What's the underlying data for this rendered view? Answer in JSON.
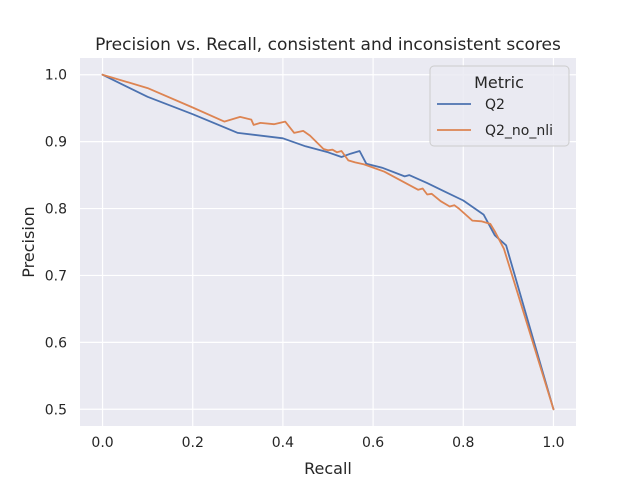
{
  "chart_data": {
    "type": "line",
    "title": "Precision vs. Recall, consistent and inconsistent scores",
    "xlabel": "Recall",
    "ylabel": "Precision",
    "xlim": [
      -0.05,
      1.05
    ],
    "ylim": [
      0.475,
      1.025
    ],
    "xticks": [
      0.0,
      0.2,
      0.4,
      0.6,
      0.8,
      1.0
    ],
    "xtick_labels": [
      "0.0",
      "0.2",
      "0.4",
      "0.6",
      "0.8",
      "1.0"
    ],
    "yticks": [
      0.5,
      0.6,
      0.7,
      0.8,
      0.9,
      1.0
    ],
    "ytick_labels": [
      "0.5",
      "0.6",
      "0.7",
      "0.8",
      "0.9",
      "1.0"
    ],
    "grid": true,
    "legend": {
      "title": "Metric",
      "position": "top-right"
    },
    "series": [
      {
        "name": "Q2",
        "color": "#4c72b0",
        "points": [
          [
            0.0,
            1.0
          ],
          [
            0.1,
            0.967
          ],
          [
            0.2,
            0.941
          ],
          [
            0.3,
            0.913
          ],
          [
            0.4,
            0.905
          ],
          [
            0.45,
            0.893
          ],
          [
            0.5,
            0.884
          ],
          [
            0.53,
            0.877
          ],
          [
            0.55,
            0.882
          ],
          [
            0.57,
            0.886
          ],
          [
            0.585,
            0.867
          ],
          [
            0.62,
            0.861
          ],
          [
            0.67,
            0.848
          ],
          [
            0.68,
            0.85
          ],
          [
            0.72,
            0.838
          ],
          [
            0.76,
            0.825
          ],
          [
            0.8,
            0.812
          ],
          [
            0.845,
            0.791
          ],
          [
            0.87,
            0.76
          ],
          [
            0.895,
            0.745
          ],
          [
            1.0,
            0.5
          ]
        ]
      },
      {
        "name": "Q2_no_nli",
        "color": "#dd8452",
        "points": [
          [
            0.0,
            1.0
          ],
          [
            0.1,
            0.98
          ],
          [
            0.2,
            0.951
          ],
          [
            0.27,
            0.93
          ],
          [
            0.305,
            0.937
          ],
          [
            0.33,
            0.933
          ],
          [
            0.335,
            0.925
          ],
          [
            0.35,
            0.928
          ],
          [
            0.38,
            0.926
          ],
          [
            0.405,
            0.93
          ],
          [
            0.425,
            0.913
          ],
          [
            0.445,
            0.916
          ],
          [
            0.46,
            0.909
          ],
          [
            0.49,
            0.889
          ],
          [
            0.5,
            0.887
          ],
          [
            0.51,
            0.888
          ],
          [
            0.52,
            0.884
          ],
          [
            0.53,
            0.886
          ],
          [
            0.545,
            0.872
          ],
          [
            0.56,
            0.869
          ],
          [
            0.58,
            0.866
          ],
          [
            0.625,
            0.855
          ],
          [
            0.7,
            0.828
          ],
          [
            0.71,
            0.83
          ],
          [
            0.72,
            0.821
          ],
          [
            0.73,
            0.822
          ],
          [
            0.75,
            0.811
          ],
          [
            0.77,
            0.803
          ],
          [
            0.78,
            0.805
          ],
          [
            0.79,
            0.8
          ],
          [
            0.82,
            0.782
          ],
          [
            0.84,
            0.781
          ],
          [
            0.86,
            0.777
          ],
          [
            0.87,
            0.766
          ],
          [
            0.89,
            0.74
          ],
          [
            1.0,
            0.5
          ]
        ]
      }
    ]
  }
}
